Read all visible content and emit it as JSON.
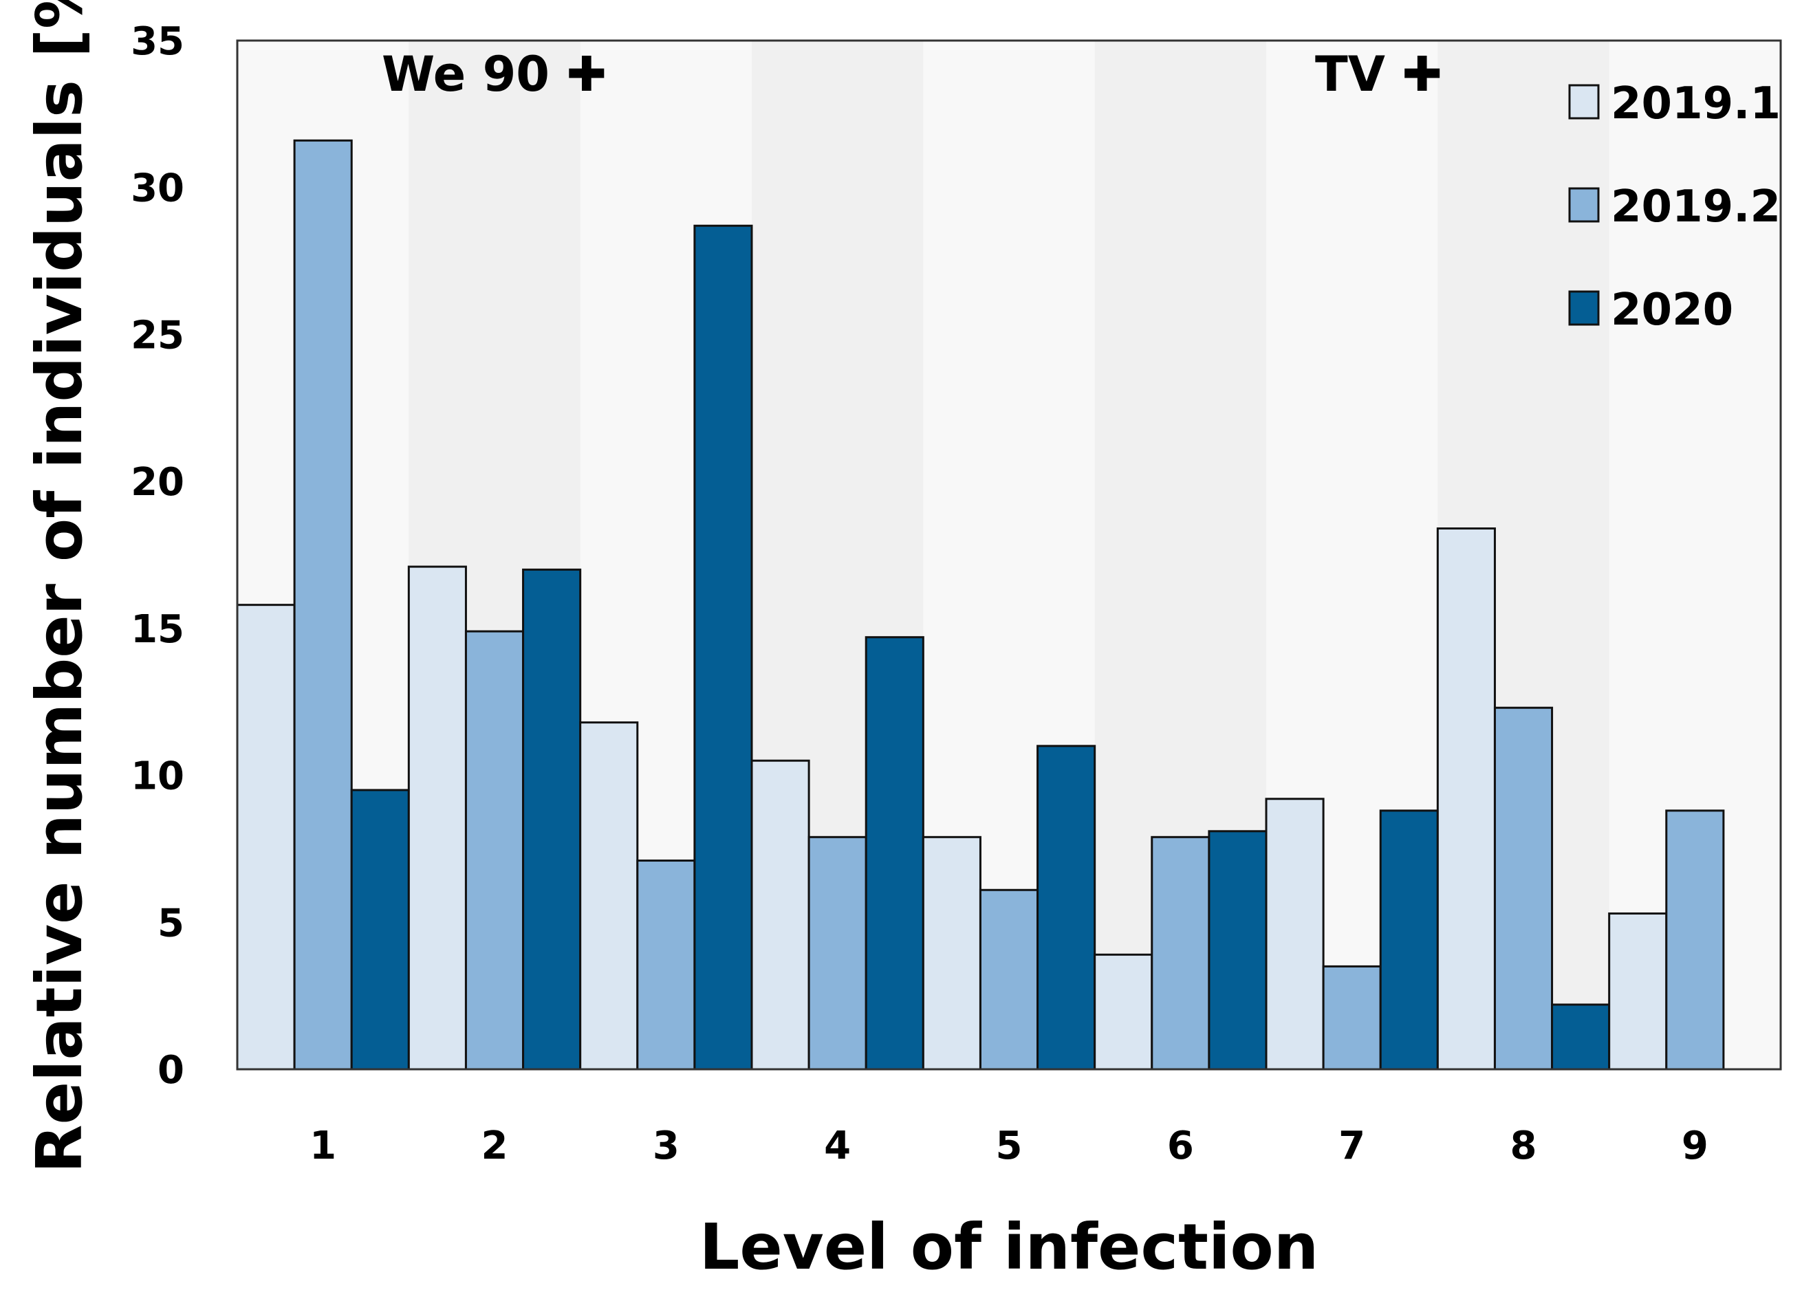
{
  "chart_data": {
    "type": "bar",
    "title": "",
    "xlabel": "Level of infection",
    "ylabel": "Relative number of individuals [%]",
    "ylim": [
      0,
      35
    ],
    "yticks": [
      "0",
      "5",
      "10",
      "15",
      "20",
      "25",
      "30",
      "35"
    ],
    "categories": [
      "1",
      "2",
      "3",
      "4",
      "5",
      "6",
      "7",
      "8",
      "9"
    ],
    "grid": false,
    "background": "alternating light grey bands",
    "legend_position": "top-right",
    "annotations": [
      {
        "text": "We 90 ✚",
        "near_category": "2"
      },
      {
        "text": "TV ✚",
        "near_category": "7-8"
      }
    ],
    "series": [
      {
        "name": "2019.1",
        "color": "#dae6f2",
        "values": [
          15.8,
          17.1,
          11.8,
          10.5,
          7.9,
          3.9,
          9.2,
          18.4,
          5.3
        ]
      },
      {
        "name": "2019.2",
        "color": "#8ab4da",
        "values": [
          31.6,
          14.9,
          7.1,
          7.9,
          6.1,
          7.9,
          3.5,
          12.3,
          8.8
        ]
      },
      {
        "name": "2020",
        "color": "#045e94",
        "values": [
          9.5,
          17.0,
          28.7,
          14.7,
          11.0,
          8.1,
          8.8,
          2.2,
          0
        ]
      }
    ]
  }
}
